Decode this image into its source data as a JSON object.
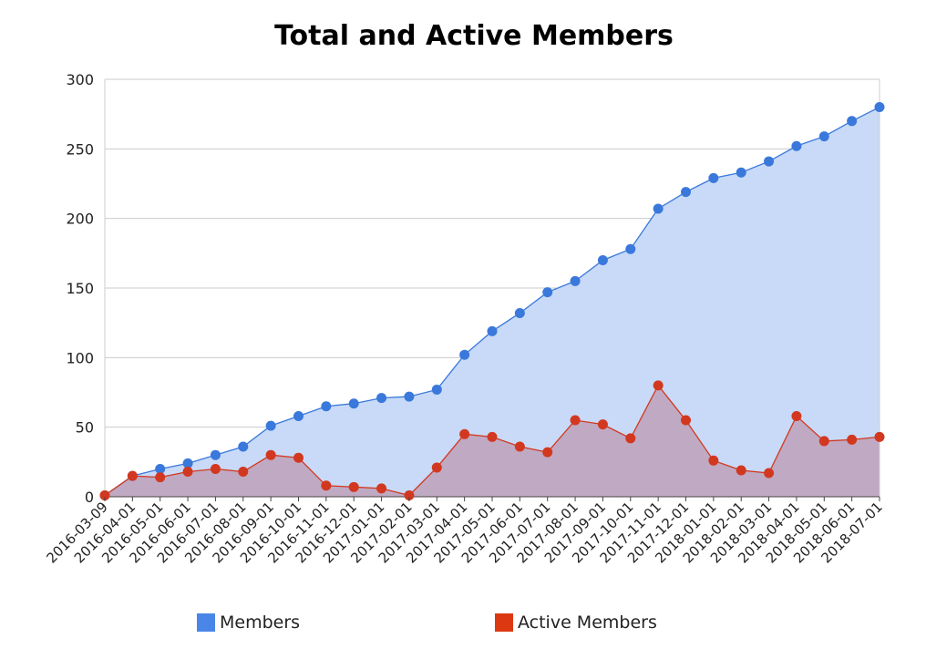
{
  "chart_data": {
    "type": "area",
    "title": "Total and Active Members",
    "xlabel": "",
    "ylabel": "",
    "ylim": [
      0,
      300
    ],
    "yticks": [
      0,
      50,
      100,
      150,
      200,
      250,
      300
    ],
    "grid": true,
    "legend_position": "bottom",
    "categories": [
      "2016-03-09",
      "2016-04-01",
      "2016-05-01",
      "2016-06-01",
      "2016-07-01",
      "2016-08-01",
      "2016-09-01",
      "2016-10-01",
      "2016-11-01",
      "2016-12-01",
      "2017-01-01",
      "2017-02-01",
      "2017-03-01",
      "2017-04-01",
      "2017-05-01",
      "2017-06-01",
      "2017-07-01",
      "2017-08-01",
      "2017-09-01",
      "2017-10-01",
      "2017-11-01",
      "2017-12-01",
      "2018-01-01",
      "2018-02-01",
      "2018-03-01",
      "2018-04-01",
      "2018-05-01",
      "2018-06-01",
      "2018-07-01"
    ],
    "series": [
      {
        "name": "Members",
        "color": "#3a78db",
        "fill": "#c8daf7",
        "values": [
          1,
          15,
          20,
          24,
          30,
          36,
          51,
          58,
          65,
          67,
          71,
          72,
          77,
          102,
          119,
          132,
          147,
          155,
          170,
          178,
          207,
          219,
          229,
          233,
          241,
          252,
          259,
          270,
          280
        ]
      },
      {
        "name": "Active Members",
        "color": "#d2381f",
        "fill": "#c0a9c2",
        "values": [
          1,
          15,
          14,
          18,
          20,
          18,
          30,
          28,
          8,
          7,
          6,
          1,
          21,
          45,
          43,
          36,
          32,
          55,
          52,
          42,
          80,
          55,
          26,
          19,
          17,
          58,
          40,
          41,
          43
        ]
      }
    ]
  }
}
